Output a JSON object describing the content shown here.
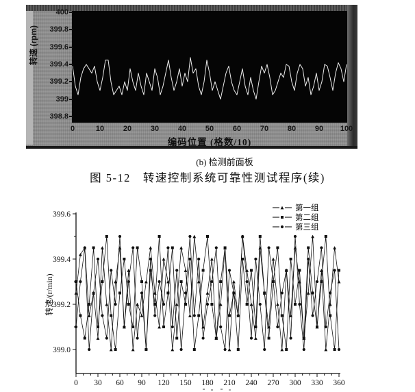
{
  "page": {
    "panel_caption": "(b) 检测前面板",
    "figure_caption": "图 5-12　转速控制系统可靠性测试程序(续)"
  },
  "colors": {
    "panel_background": "#8f8f8f",
    "panel_plot_background": "#050505",
    "panel_trace": "#ededed",
    "ink": "#111111"
  },
  "chart_data": [
    {
      "id": "front_panel_chart",
      "type": "line",
      "title": "",
      "xlabel": "编码位置 (格数/10)",
      "ylabel": "转速 (rpm)",
      "xlim": [
        0,
        100
      ],
      "ylim": [
        398.8,
        400
      ],
      "grid": false,
      "x_tick_labels": [
        "0",
        "10",
        "20",
        "30",
        "40",
        "50",
        "60",
        "70",
        "80",
        "90",
        "100"
      ],
      "x_tick_values": [
        0,
        10,
        20,
        30,
        40,
        50,
        60,
        70,
        80,
        90,
        100
      ],
      "y_tick_labels": [
        "400",
        "399.8",
        "399.6",
        "399.4",
        "399.2",
        "399",
        "398.8"
      ],
      "y_tick_values": [
        400,
        399.8,
        399.6,
        399.4,
        399.2,
        399,
        398.8
      ],
      "x_step": 1,
      "values": [
        399.38,
        399.15,
        399.05,
        399.25,
        399.35,
        399.4,
        399.35,
        399.3,
        399.38,
        399.2,
        399.1,
        399.25,
        399.45,
        399.45,
        399.2,
        399.05,
        399.1,
        399.15,
        399.05,
        399.2,
        399.1,
        399.35,
        399.2,
        399.1,
        399.3,
        399.15,
        399.05,
        399.3,
        399.2,
        399.1,
        399.35,
        399.25,
        399.05,
        399.15,
        399.3,
        399.45,
        399.25,
        399.1,
        399.2,
        399.35,
        399.15,
        399.3,
        399.2,
        399.48,
        399.3,
        399.35,
        399.15,
        399.05,
        399.2,
        399.45,
        399.3,
        399.1,
        399.2,
        399.1,
        399.0,
        399.15,
        399.3,
        399.38,
        399.2,
        399.1,
        399.05,
        399.2,
        399.35,
        399.15,
        399.05,
        399.25,
        399.1,
        399.0,
        399.2,
        399.38,
        399.3,
        399.4,
        399.25,
        399.05,
        399.1,
        399.2,
        399.3,
        399.25,
        399.4,
        399.38,
        399.2,
        399.1,
        399.3,
        399.4,
        399.35,
        399.15,
        399.25,
        399.05,
        399.15,
        399.3,
        399.1,
        399.2,
        399.4,
        399.38,
        399.25,
        399.1,
        399.3,
        399.42,
        399.35,
        399.2,
        399.4
      ]
    },
    {
      "id": "grouped_chart",
      "type": "line",
      "title": "",
      "xlabel": "",
      "ylabel": "转速/(r/min)",
      "xlim": [
        0,
        360
      ],
      "ylim": [
        399.0,
        399.6
      ],
      "grid": false,
      "legend_position": "top-right",
      "x_tick_labels": [
        "0",
        "30",
        "60",
        "90",
        "120",
        "150",
        "180",
        "210",
        "240",
        "270",
        "300",
        "330",
        "360"
      ],
      "x_tick_values": [
        0,
        30,
        60,
        90,
        120,
        150,
        180,
        210,
        240,
        270,
        300,
        330,
        360
      ],
      "x_minor_step": 10,
      "y_tick_labels": [
        "399.0",
        "399.2",
        "399.4",
        "399.6"
      ],
      "y_tick_values": [
        399.0,
        399.2,
        399.4,
        399.6
      ],
      "y_minor_step": 0.1,
      "x_step": 6,
      "series": [
        {
          "name": "第一组",
          "marker": "triangle",
          "values": [
            399.25,
            399.42,
            399.45,
            399.15,
            399.25,
            399.05,
            399.45,
            399.2,
            399.0,
            399.3,
            399.45,
            399.1,
            399.35,
            399.0,
            399.2,
            399.15,
            399.3,
            399.45,
            399.25,
            399.1,
            399.4,
            399.3,
            399.0,
            399.2,
            399.45,
            399.35,
            399.15,
            399.5,
            399.3,
            399.1,
            399.25,
            399.4,
            399.05,
            399.2,
            399.45,
            399.0,
            399.3,
            399.15,
            399.5,
            399.35,
            399.2,
            399.05,
            399.45,
            399.25,
            399.1,
            399.4,
            399.2,
            399.0,
            399.35,
            399.15,
            399.45,
            399.3,
            399.05,
            399.25,
            399.5,
            399.1,
            399.35,
            399.0,
            399.2,
            399.45,
            399.3
          ]
        },
        {
          "name": "第二组",
          "marker": "square",
          "values": [
            399.3,
            399.15,
            399.05,
            399.2,
            399.45,
            399.1,
            399.3,
            399.5,
            399.15,
            399.0,
            399.25,
            399.4,
            399.2,
            399.1,
            399.45,
            399.3,
            399.0,
            399.35,
            399.2,
            399.5,
            399.1,
            399.25,
            399.45,
            399.05,
            399.3,
            399.2,
            399.4,
            399.0,
            399.15,
            399.35,
            399.5,
            399.2,
            399.05,
            399.3,
            399.45,
            399.15,
            399.25,
            399.0,
            399.4,
            399.2,
            399.35,
            399.1,
            399.5,
            399.25,
            399.05,
            399.3,
            399.45,
            399.15,
            399.0,
            399.4,
            399.2,
            399.35,
            399.05,
            399.45,
            399.25,
            399.1,
            399.3,
            399.5,
            399.15,
            399.0,
            399.35
          ]
        },
        {
          "name": "第三组",
          "marker": "circle",
          "values": [
            399.1,
            399.3,
            399.45,
            399.0,
            399.25,
            399.4,
            399.15,
            399.05,
            399.35,
            399.2,
            399.5,
            399.1,
            399.3,
            399.45,
            399.05,
            399.25,
            399.0,
            399.4,
            399.15,
            399.3,
            399.2,
            399.45,
            399.1,
            399.35,
            399.0,
            399.25,
            399.5,
            399.15,
            399.4,
            399.05,
            399.2,
            399.3,
            399.45,
            399.1,
            399.0,
            399.35,
            399.25,
            399.15,
            399.5,
            399.3,
            399.05,
            399.4,
            399.2,
            399.0,
            399.45,
            399.3,
            399.1,
            399.25,
            399.35,
            399.05,
            399.5,
            399.2,
            399.0,
            399.4,
            399.15,
            399.3,
            399.45,
            399.1,
            399.25,
            399.35,
            399.0
          ]
        }
      ]
    }
  ]
}
